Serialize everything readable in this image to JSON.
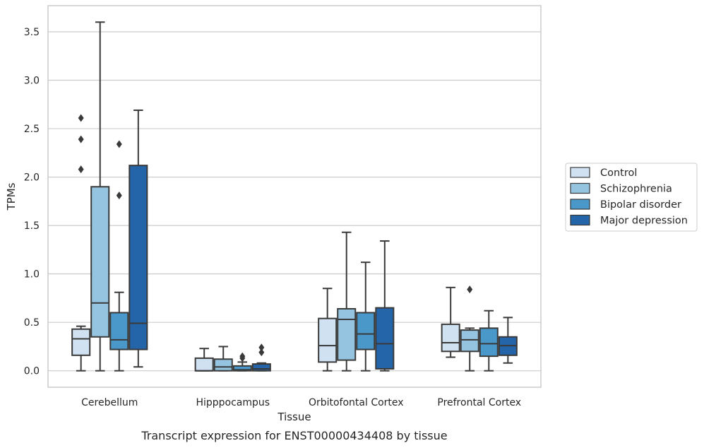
{
  "chart_data": {
    "type": "box",
    "caption": "Transcript expression for ENST00000434408 by tissue",
    "xlabel": "Tissue",
    "ylabel": "TPMs",
    "ylim": [
      -0.17,
      3.77
    ],
    "yticks": [
      "0.0",
      "0.5",
      "1.0",
      "1.5",
      "2.0",
      "2.5",
      "3.0",
      "3.5"
    ],
    "grid": true,
    "legend_position": "right",
    "categories": [
      "Cerebellum",
      "Hipppocampus",
      "Orbitofontal Cortex",
      "Prefrontal Cortex"
    ],
    "series": [
      {
        "name": "Control",
        "color": "#d0e1f2",
        "boxes": [
          {
            "whislo": 0.0,
            "q1": 0.16,
            "med": 0.33,
            "q3": 0.43,
            "whishi": 0.46,
            "fliers": [
              2.08,
              2.39,
              2.61
            ]
          },
          {
            "whislo": 0.0,
            "q1": 0.0,
            "med": 0.0,
            "q3": 0.13,
            "whishi": 0.23,
            "fliers": []
          },
          {
            "whislo": 0.0,
            "q1": 0.09,
            "med": 0.26,
            "q3": 0.54,
            "whishi": 0.85,
            "fliers": []
          },
          {
            "whislo": 0.14,
            "q1": 0.2,
            "med": 0.29,
            "q3": 0.48,
            "whishi": 0.86,
            "fliers": []
          }
        ]
      },
      {
        "name": "Schizophrenia",
        "color": "#94c4df",
        "boxes": [
          {
            "whislo": 0.0,
            "q1": 0.35,
            "med": 0.7,
            "q3": 1.9,
            "whishi": 3.6,
            "fliers": []
          },
          {
            "whislo": 0.0,
            "q1": 0.0,
            "med": 0.04,
            "q3": 0.12,
            "whishi": 0.25,
            "fliers": []
          },
          {
            "whislo": 0.0,
            "q1": 0.11,
            "med": 0.53,
            "q3": 0.64,
            "whishi": 1.43,
            "fliers": []
          },
          {
            "whislo": 0.0,
            "q1": 0.2,
            "med": 0.32,
            "q3": 0.42,
            "whishi": 0.44,
            "fliers": [
              0.84
            ]
          }
        ]
      },
      {
        "name": "Bipolar disorder",
        "color": "#4a98c9",
        "boxes": [
          {
            "whislo": 0.0,
            "q1": 0.22,
            "med": 0.32,
            "q3": 0.6,
            "whishi": 0.81,
            "fliers": [
              1.81,
              2.34
            ]
          },
          {
            "whislo": 0.0,
            "q1": 0.0,
            "med": 0.01,
            "q3": 0.05,
            "whishi": 0.09,
            "fliers": [
              0.13,
              0.15
            ]
          },
          {
            "whislo": 0.0,
            "q1": 0.22,
            "med": 0.38,
            "q3": 0.6,
            "whishi": 1.12,
            "fliers": []
          },
          {
            "whislo": 0.0,
            "q1": 0.15,
            "med": 0.28,
            "q3": 0.44,
            "whishi": 0.62,
            "fliers": []
          }
        ]
      },
      {
        "name": "Major depression",
        "color": "#2464a8",
        "boxes": [
          {
            "whislo": 0.04,
            "q1": 0.22,
            "med": 0.49,
            "q3": 2.12,
            "whishi": 2.69,
            "fliers": []
          },
          {
            "whislo": 0.0,
            "q1": 0.0,
            "med": 0.02,
            "q3": 0.07,
            "whishi": 0.08,
            "fliers": [
              0.19,
              0.24
            ]
          },
          {
            "whislo": 0.0,
            "q1": 0.02,
            "med": 0.28,
            "q3": 0.65,
            "whishi": 1.34,
            "fliers": []
          },
          {
            "whislo": 0.08,
            "q1": 0.16,
            "med": 0.26,
            "q3": 0.35,
            "whishi": 0.55,
            "fliers": []
          }
        ]
      }
    ]
  }
}
